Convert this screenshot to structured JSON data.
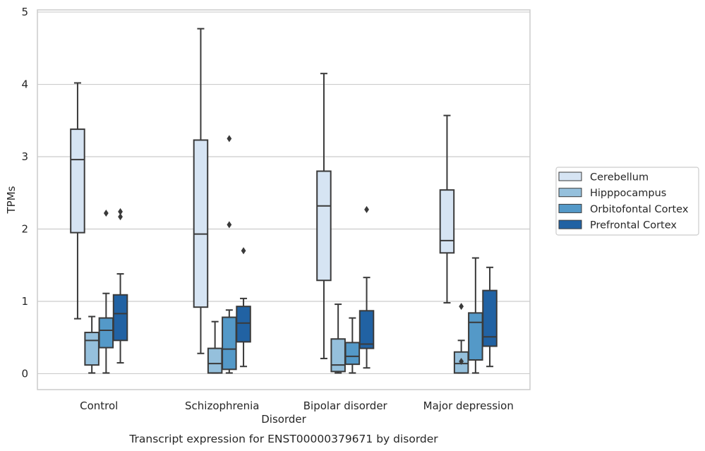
{
  "chart_data": {
    "type": "box",
    "title": "",
    "caption": "Transcript expression for ENST00000379671 by disorder",
    "xlabel": "Disorder",
    "ylabel": "TPMs",
    "ylim": [
      -0.22,
      5.03
    ],
    "y_ticks": [
      "0",
      "1",
      "2",
      "3",
      "4",
      "5"
    ],
    "grid": "horizontal",
    "legend_placement": "right",
    "categories": [
      "Control",
      "Schizophrenia",
      "Bipolar disorder",
      "Major depression"
    ],
    "series": [
      {
        "name": "Cerebellum",
        "color": "#d6e4f3",
        "boxes": [
          {
            "whisker_low": 0.76,
            "q1": 1.95,
            "median": 2.96,
            "q3": 3.38,
            "whisker_high": 4.02,
            "outliers": []
          },
          {
            "whisker_low": 0.28,
            "q1": 0.92,
            "median": 1.93,
            "q3": 3.23,
            "whisker_high": 4.77,
            "outliers": []
          },
          {
            "whisker_low": 0.21,
            "q1": 1.29,
            "median": 2.32,
            "q3": 2.8,
            "whisker_high": 4.15,
            "outliers": []
          },
          {
            "whisker_low": 0.98,
            "q1": 1.67,
            "median": 1.84,
            "q3": 2.54,
            "whisker_high": 3.57,
            "outliers": []
          }
        ]
      },
      {
        "name": "Hipppocampus",
        "color": "#95c0dc",
        "boxes": [
          {
            "whisker_low": 0.01,
            "q1": 0.12,
            "median": 0.46,
            "q3": 0.57,
            "whisker_high": 0.79,
            "outliers": []
          },
          {
            "whisker_low": 0.01,
            "q1": 0.01,
            "median": 0.14,
            "q3": 0.35,
            "whisker_high": 0.72,
            "outliers": []
          },
          {
            "whisker_low": 0.01,
            "q1": 0.03,
            "median": 0.12,
            "q3": 0.48,
            "whisker_high": 0.96,
            "outliers": []
          },
          {
            "whisker_low": 0.01,
            "q1": 0.01,
            "median": 0.14,
            "q3": 0.3,
            "whisker_high": 0.46,
            "outliers": [
              0.17,
              0.93
            ]
          }
        ]
      },
      {
        "name": "Orbitofontal Cortex",
        "color": "#5499c8",
        "boxes": [
          {
            "whisker_low": 0.01,
            "q1": 0.36,
            "median": 0.6,
            "q3": 0.77,
            "whisker_high": 1.11,
            "outliers": [
              2.22
            ]
          },
          {
            "whisker_low": 0.01,
            "q1": 0.06,
            "median": 0.34,
            "q3": 0.78,
            "whisker_high": 0.88,
            "outliers": [
              2.06,
              3.25
            ]
          },
          {
            "whisker_low": 0.01,
            "q1": 0.13,
            "median": 0.24,
            "q3": 0.43,
            "whisker_high": 0.77,
            "outliers": []
          },
          {
            "whisker_low": 0.01,
            "q1": 0.19,
            "median": 0.71,
            "q3": 0.84,
            "whisker_high": 1.6,
            "outliers": []
          }
        ]
      },
      {
        "name": "Prefrontal Cortex",
        "color": "#2162a3",
        "boxes": [
          {
            "whisker_low": 0.15,
            "q1": 0.46,
            "median": 0.83,
            "q3": 1.09,
            "whisker_high": 1.38,
            "outliers": [
              2.17,
              2.24
            ]
          },
          {
            "whisker_low": 0.1,
            "q1": 0.44,
            "median": 0.7,
            "q3": 0.93,
            "whisker_high": 1.04,
            "outliers": [
              1.7
            ]
          },
          {
            "whisker_low": 0.08,
            "q1": 0.35,
            "median": 0.41,
            "q3": 0.87,
            "whisker_high": 1.33,
            "outliers": [
              2.27
            ]
          },
          {
            "whisker_low": 0.1,
            "q1": 0.38,
            "median": 0.51,
            "q3": 1.15,
            "whisker_high": 1.47,
            "outliers": []
          }
        ]
      }
    ]
  }
}
